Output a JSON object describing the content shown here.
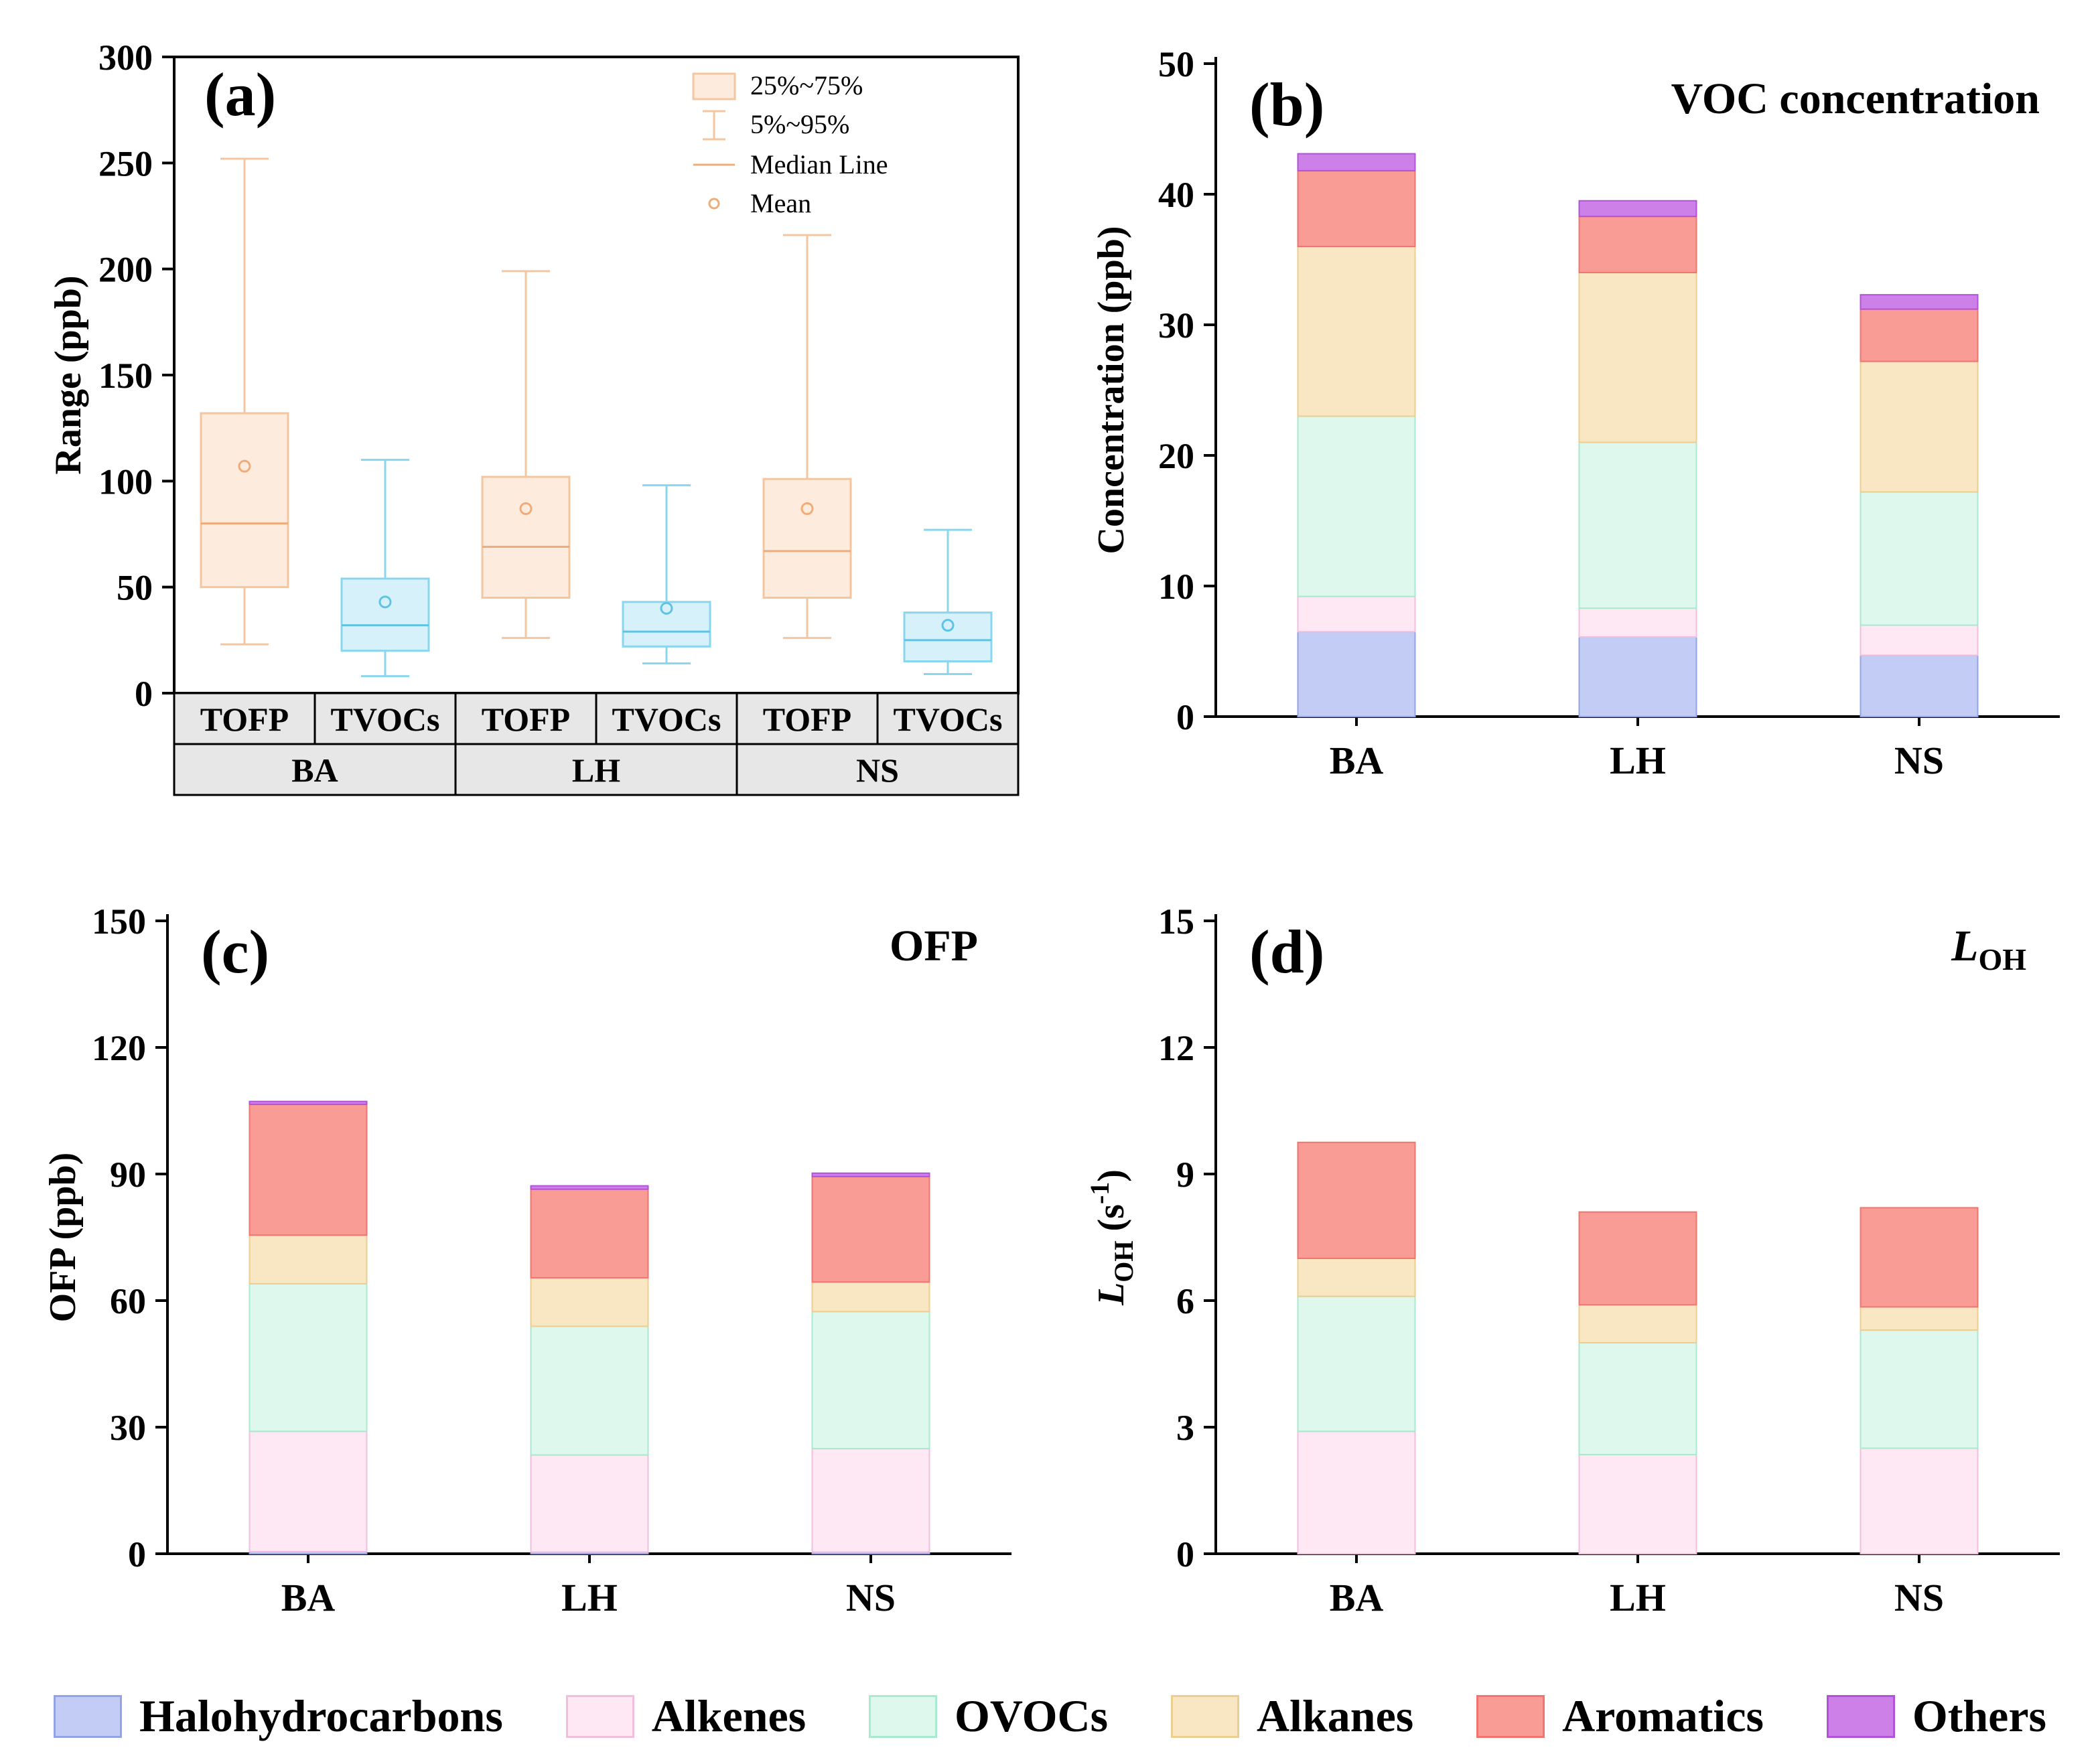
{
  "series_colors": {
    "Halohydrocarbons": {
      "fill": "#c3ccf4",
      "stroke": "#93a3e4"
    },
    "Alkenes": {
      "fill": "#fde8f4",
      "stroke": "#f2bedd"
    },
    "OVOCs": {
      "fill": "#def8ed",
      "stroke": "#a9e9cf"
    },
    "Alkanes": {
      "fill": "#f9e6c3",
      "stroke": "#ecce90"
    },
    "Aromatics": {
      "fill": "#f99c96",
      "stroke": "#f1746e"
    },
    "Others": {
      "fill": "#cd80e8",
      "stroke": "#b153d8"
    }
  },
  "box_colors": {
    "TOFP": {
      "fill": "#fdecdd",
      "stroke": "#f3c6a0",
      "line": "#f0ac78"
    },
    "TVOCs": {
      "fill": "#d6f1fa",
      "stroke": "#8ad6ee",
      "line": "#5fc3e6"
    }
  },
  "legend": {
    "items": [
      "Halohydrocarbons",
      "Alkenes",
      "OVOCs",
      "Alkanes",
      "Aromatics",
      "Others"
    ]
  },
  "chart_data": [
    {
      "id": "a",
      "type": "box",
      "label": "(a)",
      "ylabel": "Range (ppb)",
      "ylim": [
        0,
        300
      ],
      "yticks": [
        0,
        50,
        100,
        150,
        200,
        250,
        300
      ],
      "legend_items": [
        "25%~75%",
        "5%~95%",
        "Median Line",
        "Mean"
      ],
      "groups": [
        "BA",
        "LH",
        "NS"
      ],
      "series_labels": [
        "TOFP",
        "TVOCs"
      ],
      "boxes": [
        {
          "group": "BA",
          "series": "TOFP",
          "low": 23,
          "q1": 50,
          "median": 80,
          "q3": 132,
          "high": 252,
          "mean": 107
        },
        {
          "group": "BA",
          "series": "TVOCs",
          "low": 8,
          "q1": 20,
          "median": 32,
          "q3": 54,
          "high": 110,
          "mean": 43
        },
        {
          "group": "LH",
          "series": "TOFP",
          "low": 26,
          "q1": 45,
          "median": 69,
          "q3": 102,
          "high": 199,
          "mean": 87
        },
        {
          "group": "LH",
          "series": "TVOCs",
          "low": 14,
          "q1": 22,
          "median": 29,
          "q3": 43,
          "high": 98,
          "mean": 40
        },
        {
          "group": "NS",
          "series": "TOFP",
          "low": 26,
          "q1": 45,
          "median": 67,
          "q3": 101,
          "high": 216,
          "mean": 87
        },
        {
          "group": "NS",
          "series": "TVOCs",
          "low": 9,
          "q1": 15,
          "median": 25,
          "q3": 38,
          "high": 77,
          "mean": 32
        }
      ]
    },
    {
      "id": "b",
      "type": "bar-stacked",
      "label": "(b)",
      "title": "VOC concentration",
      "ylabel": "Concentration (ppb)",
      "ylim": [
        0,
        50
      ],
      "yticks": [
        0,
        10,
        20,
        30,
        40,
        50
      ],
      "categories": [
        "BA",
        "LH",
        "NS"
      ],
      "series": [
        {
          "name": "Halohydrocarbons",
          "values": [
            6.5,
            6.1,
            4.7
          ]
        },
        {
          "name": "Alkenes",
          "values": [
            2.7,
            2.2,
            2.3
          ]
        },
        {
          "name": "OVOCs",
          "values": [
            13.8,
            12.7,
            10.2
          ]
        },
        {
          "name": "Alkanes",
          "values": [
            13.0,
            13.0,
            10.0
          ]
        },
        {
          "name": "Aromatics",
          "values": [
            5.8,
            4.3,
            4.0
          ]
        },
        {
          "name": "Others",
          "values": [
            1.3,
            1.2,
            1.1
          ]
        }
      ]
    },
    {
      "id": "c",
      "type": "bar-stacked",
      "label": "(c)",
      "title": "OFP",
      "ylabel": "OFP (ppb)",
      "ylim": [
        0,
        150
      ],
      "yticks": [
        0,
        30,
        60,
        90,
        120,
        150
      ],
      "categories": [
        "BA",
        "LH",
        "NS"
      ],
      "series": [
        {
          "name": "Halohydrocarbons",
          "values": [
            0.5,
            0.4,
            0.4
          ]
        },
        {
          "name": "Alkenes",
          "values": [
            28.5,
            23.0,
            24.5
          ]
        },
        {
          "name": "OVOCs",
          "values": [
            35.0,
            30.5,
            32.5
          ]
        },
        {
          "name": "Alkanes",
          "values": [
            11.5,
            11.5,
            7.0
          ]
        },
        {
          "name": "Aromatics",
          "values": [
            31.0,
            21.0,
            25.0
          ]
        },
        {
          "name": "Others",
          "values": [
            0.7,
            0.8,
            0.8
          ]
        }
      ]
    },
    {
      "id": "d",
      "type": "bar-stacked",
      "label": "(d)",
      "title_main": "L",
      "title_sub": "OH",
      "ylabel_segments": [
        {
          "t": "L",
          "s": "i"
        },
        {
          "t": "OH",
          "s": "sub"
        },
        {
          "t": " (s",
          "s": ""
        },
        {
          "t": "-1",
          "s": "sup"
        },
        {
          "t": ")",
          "s": ""
        }
      ],
      "ylim": [
        0,
        15
      ],
      "yticks": [
        0,
        3,
        6,
        9,
        12,
        15
      ],
      "categories": [
        "BA",
        "LH",
        "NS"
      ],
      "series": [
        {
          "name": "Halohydrocarbons",
          "values": [
            0,
            0,
            0
          ]
        },
        {
          "name": "Alkenes",
          "values": [
            2.9,
            2.35,
            2.5
          ]
        },
        {
          "name": "OVOCs",
          "values": [
            3.2,
            2.65,
            2.8
          ]
        },
        {
          "name": "Alkanes",
          "values": [
            0.9,
            0.9,
            0.55
          ]
        },
        {
          "name": "Aromatics",
          "values": [
            2.75,
            2.2,
            2.35
          ]
        },
        {
          "name": "Others",
          "values": [
            0,
            0,
            0
          ]
        }
      ]
    }
  ]
}
